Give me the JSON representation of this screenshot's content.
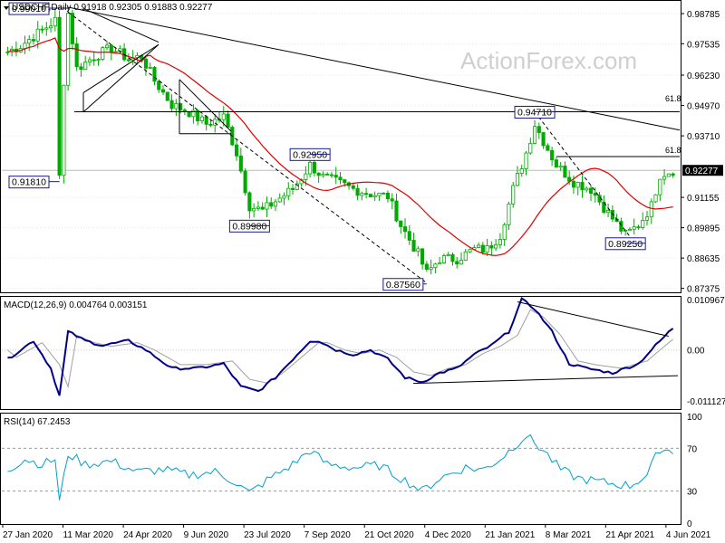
{
  "chart_data": {
    "type": "candlestick",
    "symbol_line": "USDCHF,Daily  0.91918  0.92305  0.91883  0.92277",
    "watermark": "ActionForex.com",
    "price_axis": {
      "range": [
        0.8725,
        0.992
      ],
      "ticks": [
        "0.98785",
        "0.97535",
        "0.96230",
        "0.94970",
        "0.93710",
        "0.92277",
        "0.91155",
        "0.89895",
        "0.88635",
        "0.87375"
      ],
      "tick_values": [
        0.98785,
        0.97535,
        0.9623,
        0.9497,
        0.9371,
        0.92277,
        0.91155,
        0.89895,
        0.88635,
        0.87375
      ]
    },
    "current_price": 0.92277,
    "date_axis": [
      "27 Jan 2020",
      "11 Mar 2020",
      "24 Apr 2020",
      "9 Jun 2020",
      "23 Jul 2020",
      "7 Sep 2020",
      "21 Oct 2020",
      "4 Dec 2020",
      "21 Jan 2021",
      "8 Mar 2021",
      "21 Apr 2021",
      "4 Jun 2021"
    ],
    "price_labels": [
      {
        "text": "0.99010",
        "price": 0.9901,
        "bar": 14
      },
      {
        "text": "0.91810",
        "price": 0.9181,
        "bar": 12
      },
      {
        "text": "0.92950",
        "price": 0.9295,
        "bar": 70
      },
      {
        "text": "0.89980",
        "price": 0.8998,
        "bar": 56
      },
      {
        "text": "0.87560",
        "price": 0.8756,
        "bar": 97
      },
      {
        "text": "0.94710",
        "price": 0.9471,
        "bar": 122
      },
      {
        "text": "0.89250",
        "price": 0.8925,
        "bar": 143
      }
    ],
    "fib_labels": [
      {
        "text": "61.8",
        "price": 0.9499
      },
      {
        "text": "61.8",
        "price": 0.9285
      }
    ],
    "ma_line": "red",
    "macd": {
      "title": "MACD(12,26,9) 0.004764 0.003151",
      "range": [
        -0.0125,
        0.0112
      ],
      "ticks": [
        "0.010967",
        "0.00",
        "-0.011127"
      ],
      "tick_values": [
        0.010967,
        0.0,
        -0.011127
      ]
    },
    "rsi": {
      "title": "RSI(14) 67.2453",
      "range": [
        0,
        100
      ],
      "ticks": [
        "100",
        "70",
        "30",
        "0"
      ],
      "tick_values": [
        100,
        70,
        30,
        0
      ],
      "levels": [
        70,
        30
      ]
    },
    "colors": {
      "candle": "#00aa00",
      "ma": "#dd0000",
      "macd_line": "#00008b",
      "signal_line": "#a0a0a0",
      "rsi": "#00a0c8",
      "trendline": "#000000",
      "label_border": "#1a1a8a"
    }
  }
}
